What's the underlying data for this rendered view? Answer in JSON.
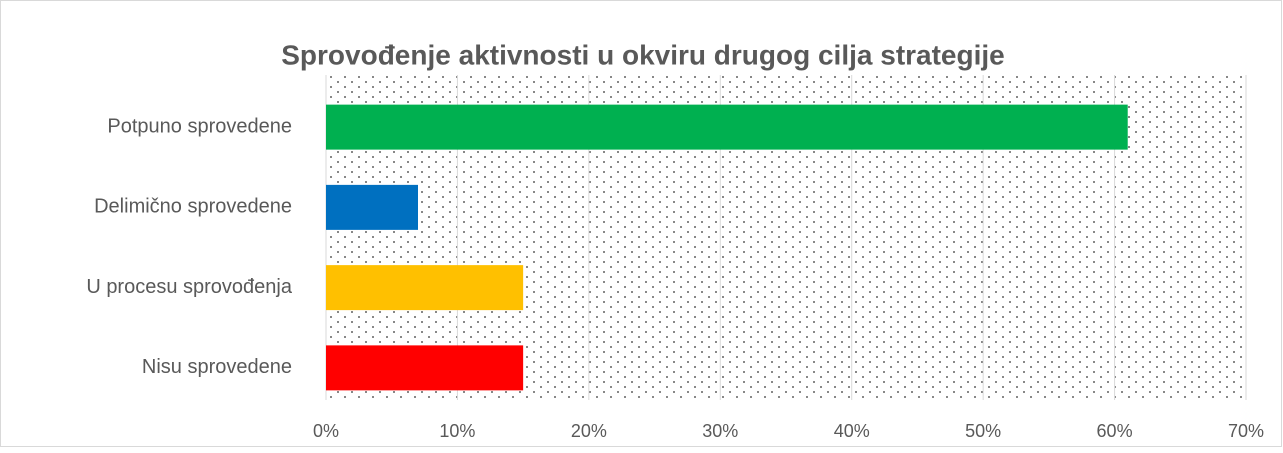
{
  "chart_data": {
    "type": "barh",
    "title": "Sprovođenje aktivnosti u okviru drugog cilja strategije",
    "categories": [
      "Potpuno sprovedene",
      "Delimično sprovedene",
      "U procesu sprovođenja",
      "Nisu sprovedene"
    ],
    "values": [
      61,
      7,
      15,
      15
    ],
    "colors": [
      "#00b050",
      "#0070c0",
      "#ffc000",
      "#ff0000"
    ],
    "xlim": [
      0,
      70
    ],
    "xticks": [
      {
        "value": 0,
        "label": "0%"
      },
      {
        "value": 10,
        "label": "10%"
      },
      {
        "value": 20,
        "label": "20%"
      },
      {
        "value": 30,
        "label": "30%"
      },
      {
        "value": 40,
        "label": "40%"
      },
      {
        "value": 50,
        "label": "50%"
      },
      {
        "value": 60,
        "label": "60%"
      },
      {
        "value": 70,
        "label": "70%"
      }
    ],
    "grid": true
  }
}
